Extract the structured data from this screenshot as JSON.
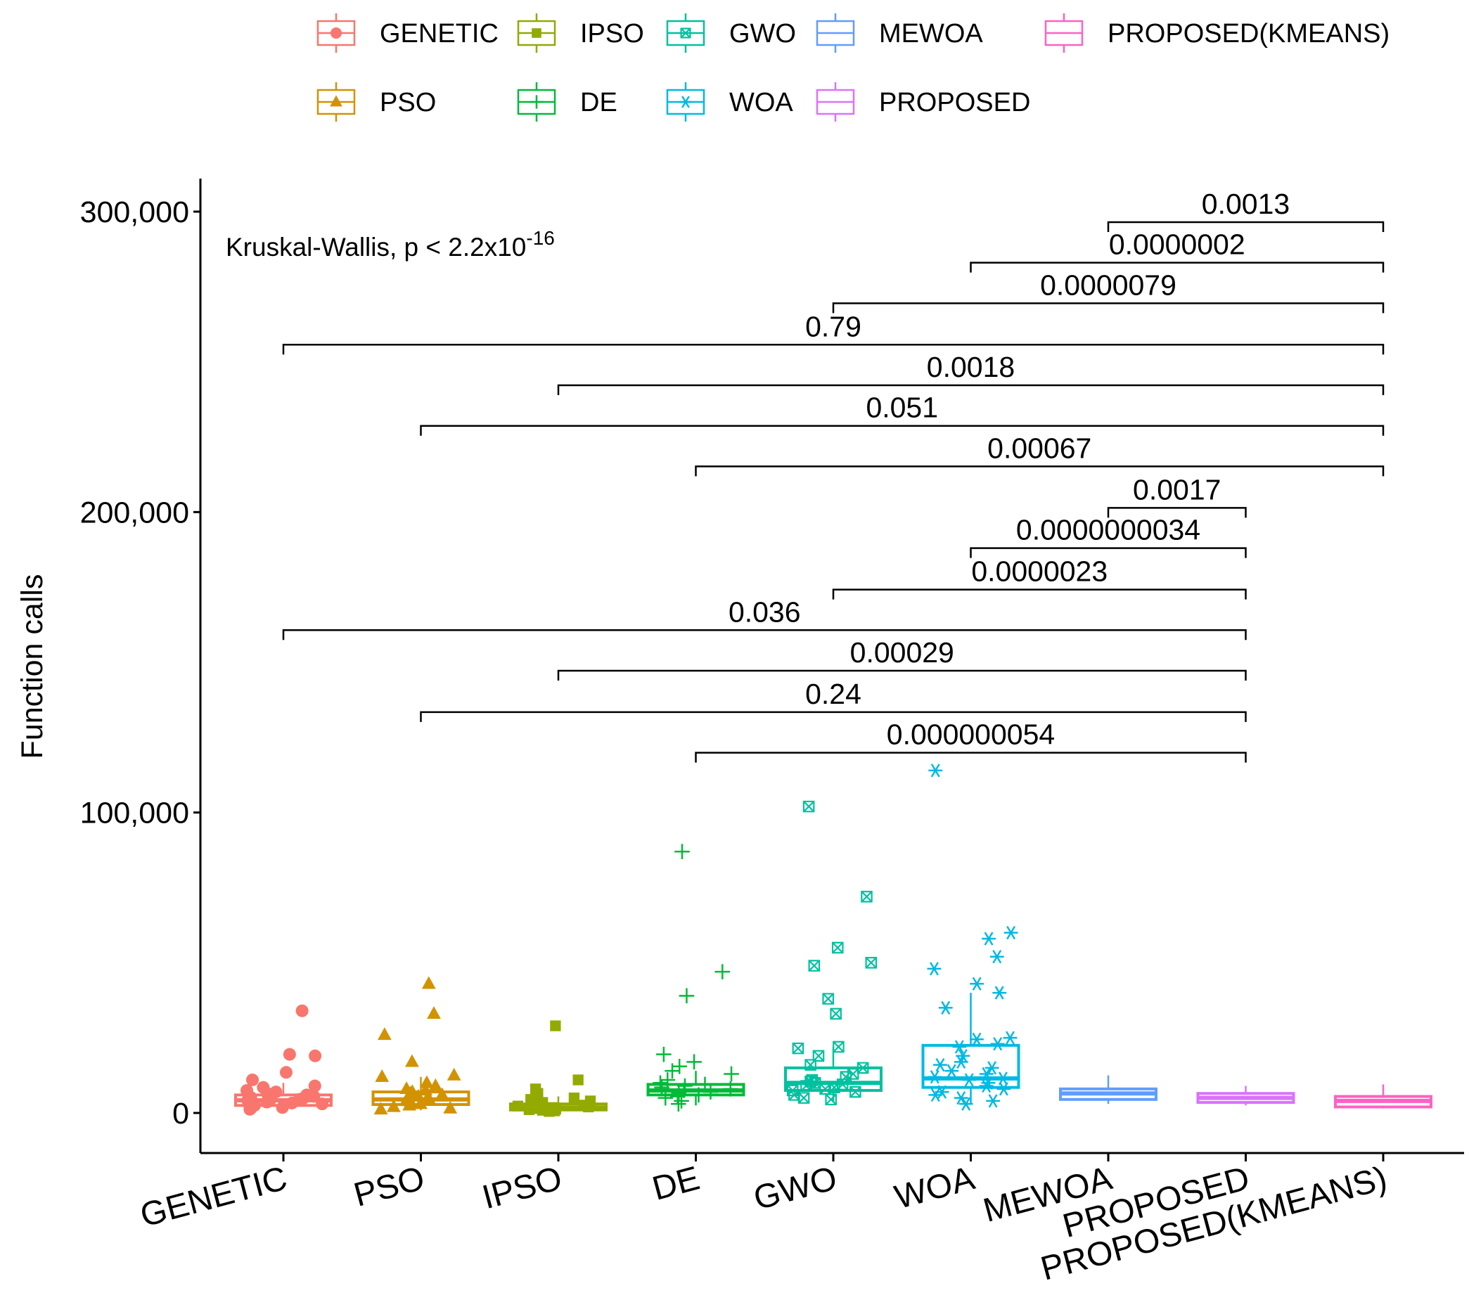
{
  "chart_data": {
    "type": "boxplot",
    "ylabel": "Function calls",
    "xlabel": "",
    "ylim": [
      -13000,
      313000
    ],
    "yticks": [
      0,
      100000,
      200000,
      300000
    ],
    "ytick_labels": [
      "0",
      "100,000",
      "200,000",
      "300,000"
    ],
    "grid": false,
    "legend_position": "top",
    "annotation": {
      "text": "Kruskal-Wallis, p < 2.2x10",
      "superscript": "-16"
    },
    "categories": [
      "GENETIC",
      "PSO",
      "IPSO",
      "DE",
      "GWO",
      "WOA",
      "MEWOA",
      "PROPOSED",
      "PROPOSED(KMEANS)"
    ],
    "series": [
      {
        "name": "GENETIC",
        "color": "#F8766D",
        "shape": "circle",
        "lower": 800,
        "q1": 2500,
        "median": 4200,
        "q3": 6000,
        "upper": 10000,
        "points": [
          34000,
          19500,
          19000,
          13500,
          11000,
          9000,
          8500,
          7500,
          7000,
          6500,
          6000,
          5500,
          5200,
          4800,
          4500,
          4200,
          4000,
          3600,
          3300,
          3000,
          2800,
          2500,
          2200,
          1800,
          1500,
          1200
        ]
      },
      {
        "name": "PSO",
        "color": "#D39200",
        "shape": "triangle",
        "lower": 900,
        "q1": 2800,
        "median": 4500,
        "q3": 7000,
        "upper": 12000,
        "points": [
          43000,
          33000,
          26000,
          17000,
          12500,
          12000,
          10000,
          9000,
          8000,
          7500,
          7000,
          6500,
          6000,
          5500,
          5000,
          4500,
          4000,
          3500,
          3000,
          2500,
          2000,
          1500,
          1200
        ]
      },
      {
        "name": "IPSO",
        "color": "#93AA00",
        "shape": "square",
        "lower": 300,
        "q1": 1000,
        "median": 1800,
        "q3": 3000,
        "upper": 5500,
        "points": [
          29000,
          11000,
          8000,
          6500,
          5000,
          4500,
          4000,
          3500,
          3000,
          2600,
          2300,
          2000,
          1800,
          1500,
          1300,
          1100,
          900,
          700,
          500
        ]
      },
      {
        "name": "DE",
        "color": "#00BA38",
        "shape": "plus",
        "lower": 2500,
        "q1": 6000,
        "median": 7500,
        "q3": 9500,
        "upper": 14000,
        "points": [
          87000,
          47000,
          39000,
          19500,
          17000,
          15500,
          14000,
          13000,
          11000,
          10000,
          9500,
          9000,
          8500,
          8000,
          7500,
          7000,
          6500,
          6000,
          5500,
          5000,
          4000,
          3000
        ]
      },
      {
        "name": "GWO",
        "color": "#00C19F",
        "shape": "square-cross",
        "lower": 3500,
        "q1": 7500,
        "median": 10000,
        "q3": 15000,
        "upper": 22000,
        "points": [
          102000,
          72000,
          55000,
          50000,
          49000,
          38000,
          33000,
          22000,
          21500,
          19000,
          16000,
          15000,
          13000,
          12000,
          11000,
          10500,
          10000,
          9500,
          9000,
          8500,
          8000,
          7500,
          7000,
          6000,
          5000,
          4500
        ]
      },
      {
        "name": "WOA",
        "color": "#00B9E3",
        "shape": "asterisk",
        "lower": 3000,
        "q1": 8500,
        "median": 11500,
        "q3": 22500,
        "upper": 40000,
        "points": [
          114000,
          60000,
          58000,
          52000,
          48000,
          43000,
          40000,
          35000,
          25000,
          24500,
          23000,
          22000,
          19000,
          17000,
          16000,
          15000,
          14000,
          13000,
          12000,
          11500,
          11000,
          10000,
          9000,
          8000,
          7000,
          6000,
          5000,
          4000,
          3000
        ]
      },
      {
        "name": "MEWOA",
        "color": "#619CFF",
        "shape": "none",
        "lower": 3000,
        "q1": 4500,
        "median": 6500,
        "q3": 8000,
        "upper": 12500,
        "points": []
      },
      {
        "name": "PROPOSED",
        "color": "#DB72FB",
        "shape": "none",
        "lower": 2500,
        "q1": 3500,
        "median": 5000,
        "q3": 6500,
        "upper": 9000,
        "points": []
      },
      {
        "name": "PROPOSED(KMEANS)",
        "color": "#FF61C3",
        "shape": "none",
        "lower": 1500,
        "q1": 2000,
        "median": 4000,
        "q3": 5500,
        "upper": 9500,
        "points": []
      }
    ],
    "comparisons": [
      {
        "from": "MEWOA",
        "to": "PROPOSED(KMEANS)",
        "y": 296500,
        "label": "0.0013"
      },
      {
        "from": "WOA",
        "to": "PROPOSED(KMEANS)",
        "y": 283000,
        "label": "0.0000002"
      },
      {
        "from": "GWO",
        "to": "PROPOSED(KMEANS)",
        "y": 269500,
        "label": "0.0000079"
      },
      {
        "from": "GENETIC",
        "to": "PROPOSED(KMEANS)",
        "y": 255700,
        "label": "0.79"
      },
      {
        "from": "IPSO",
        "to": "PROPOSED(KMEANS)",
        "y": 242200,
        "label": "0.0018"
      },
      {
        "from": "PSO",
        "to": "PROPOSED(KMEANS)",
        "y": 228700,
        "label": "0.051"
      },
      {
        "from": "DE",
        "to": "PROPOSED(KMEANS)",
        "y": 215200,
        "label": "0.00067"
      },
      {
        "from": "MEWOA",
        "to": "PROPOSED",
        "y": 201400,
        "label": "0.0017"
      },
      {
        "from": "WOA",
        "to": "PROPOSED",
        "y": 188000,
        "label": "0.0000000034"
      },
      {
        "from": "GWO",
        "to": "PROPOSED",
        "y": 174200,
        "label": "0.0000023"
      },
      {
        "from": "GENETIC",
        "to": "PROPOSED",
        "y": 160700,
        "label": "0.036"
      },
      {
        "from": "IPSO",
        "to": "PROPOSED",
        "y": 147200,
        "label": "0.00029"
      },
      {
        "from": "PSO",
        "to": "PROPOSED",
        "y": 133400,
        "label": "0.24"
      },
      {
        "from": "DE",
        "to": "PROPOSED",
        "y": 119900,
        "label": "0.000000054"
      }
    ],
    "legend": {
      "rows": [
        [
          "GENETIC",
          "IPSO",
          "GWO",
          "MEWOA",
          "PROPOSED(KMEANS)"
        ],
        [
          "PSO",
          "DE",
          "WOA",
          "PROPOSED"
        ]
      ]
    }
  }
}
